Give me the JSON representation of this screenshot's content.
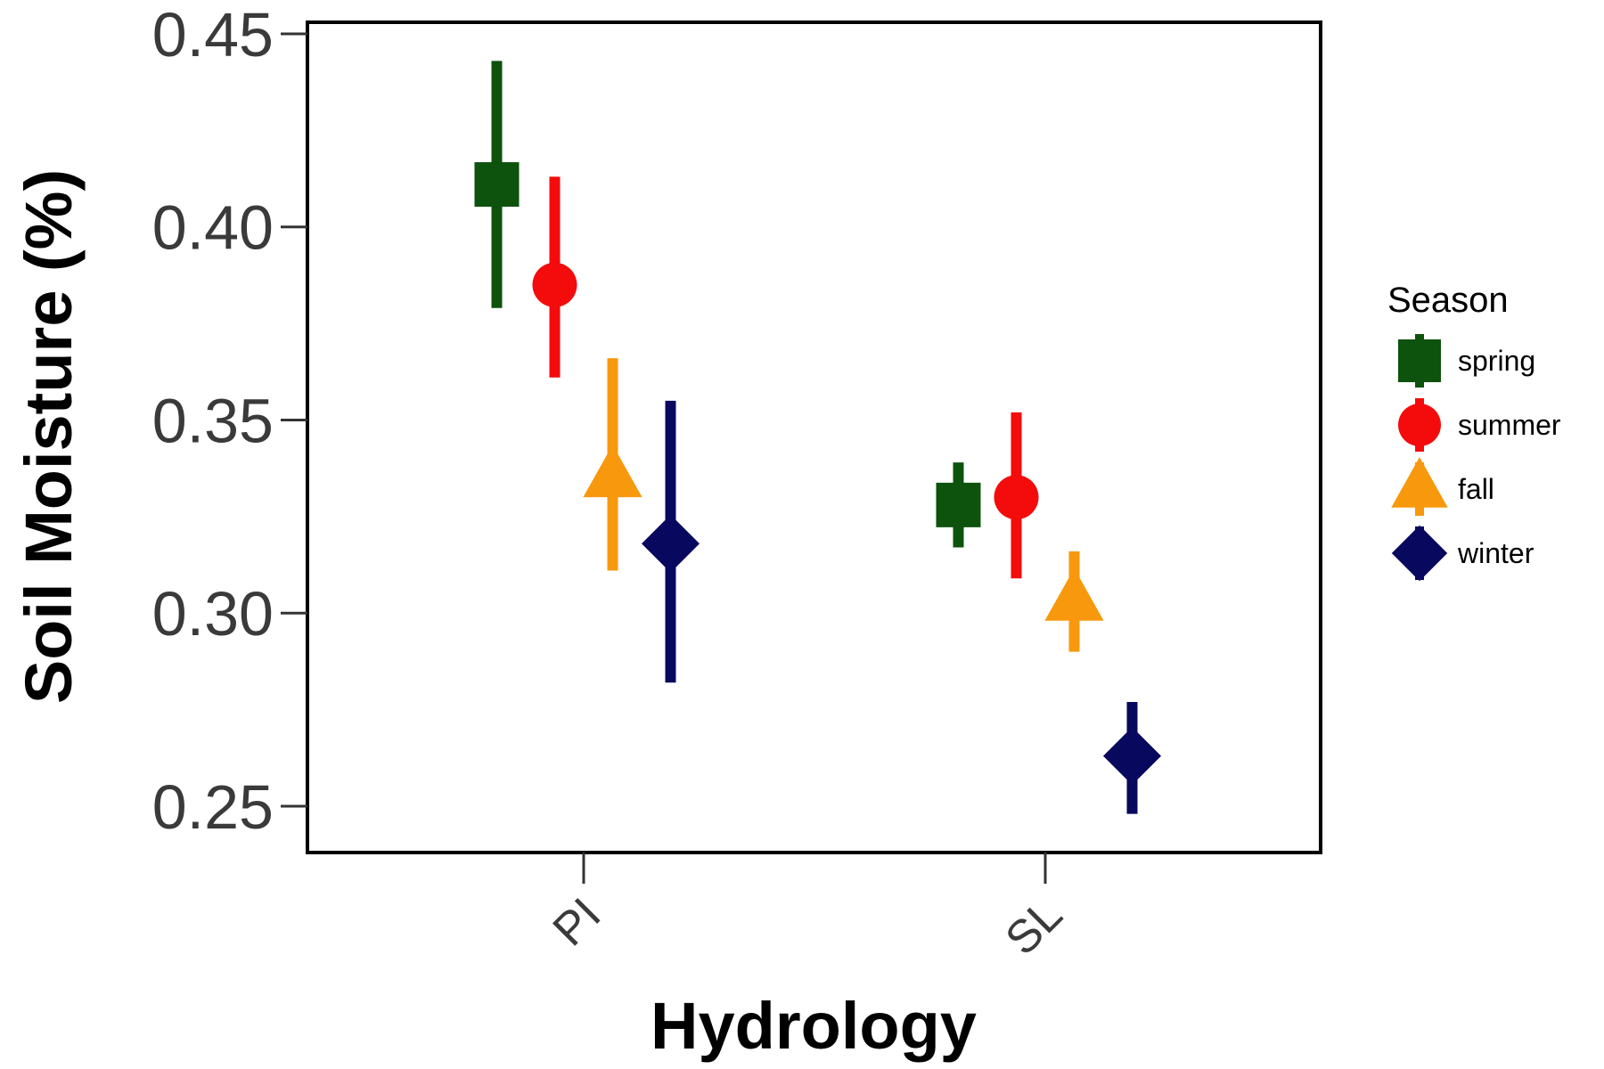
{
  "chart_data": {
    "type": "scatter",
    "xlabel": "Hydrology",
    "ylabel": "Soil Moisture (%)",
    "ylim": [
      0.238,
      0.453
    ],
    "y_ticks": [
      "0.25",
      "0.30",
      "0.35",
      "0.40",
      "0.45"
    ],
    "categories": [
      "PI",
      "SL"
    ],
    "legend_title": "Season",
    "legend_position": "right",
    "grid": false,
    "series": [
      {
        "name": "spring",
        "color": "#0d520d",
        "shape": "square",
        "points": [
          {
            "category": "PI",
            "value": 0.411,
            "lower": 0.379,
            "upper": 0.443
          },
          {
            "category": "SL",
            "value": 0.328,
            "lower": 0.317,
            "upper": 0.339
          }
        ]
      },
      {
        "name": "summer",
        "color": "#f40b0b",
        "shape": "circle",
        "points": [
          {
            "category": "PI",
            "value": 0.385,
            "lower": 0.361,
            "upper": 0.413
          },
          {
            "category": "SL",
            "value": 0.33,
            "lower": 0.309,
            "upper": 0.352
          }
        ]
      },
      {
        "name": "fall",
        "color": "#f8980d",
        "shape": "triangle",
        "points": [
          {
            "category": "PI",
            "value": 0.335,
            "lower": 0.311,
            "upper": 0.366
          },
          {
            "category": "SL",
            "value": 0.303,
            "lower": 0.29,
            "upper": 0.316
          }
        ]
      },
      {
        "name": "winter",
        "color": "#08085e",
        "shape": "diamond",
        "points": [
          {
            "category": "PI",
            "value": 0.318,
            "lower": 0.282,
            "upper": 0.355
          },
          {
            "category": "SL",
            "value": 0.263,
            "lower": 0.248,
            "upper": 0.277
          }
        ]
      }
    ]
  }
}
